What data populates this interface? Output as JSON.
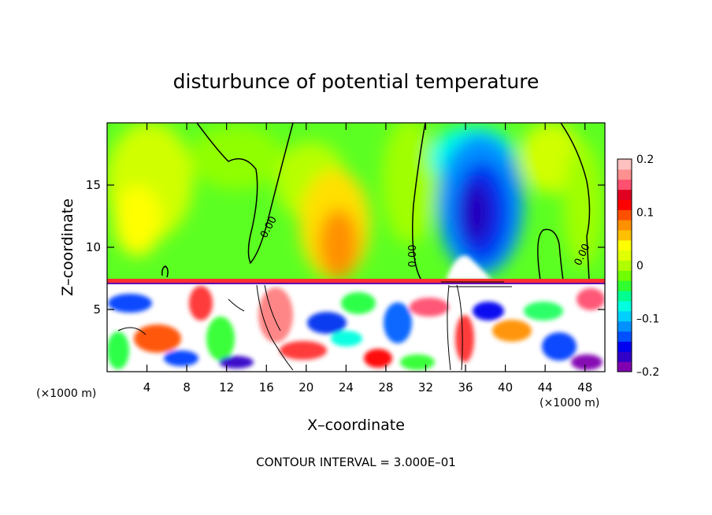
{
  "chart_data": {
    "type": "heatmap",
    "title": "disturbunce of potential temperature",
    "xlabel": "X–coordinate",
    "ylabel": "Z–coordinate",
    "x_unit": "(×1000 m)",
    "x_ticks": [
      4,
      8,
      12,
      16,
      20,
      24,
      28,
      32,
      36,
      40,
      44,
      48
    ],
    "y_ticks": [
      5,
      10,
      15
    ],
    "xlim": [
      0,
      50
    ],
    "ylim": [
      0,
      20
    ],
    "colorbar": {
      "ticks": [
        {
          "value": 0.2,
          "label": "0.2"
        },
        {
          "value": 0.1,
          "label": "0.1"
        },
        {
          "value": 0.0,
          "label": "0"
        },
        {
          "value": -0.1,
          "label": "–0.1"
        },
        {
          "value": -0.2,
          "label": "–0.2"
        }
      ],
      "range": [
        -0.2,
        0.2
      ]
    },
    "contour_labels": [
      {
        "text": "0.00",
        "x": 16.5,
        "z": 11.5,
        "angle": -62
      },
      {
        "text": "0.00",
        "x": 31.0,
        "z": 9.3,
        "angle": -90
      },
      {
        "text": "0.00",
        "x": 48.0,
        "z": 9.3,
        "angle": -65
      }
    ],
    "footer": "CONTOUR INTERVAL = 3.000E–01",
    "regions": [
      {
        "x": 6,
        "z": 16,
        "value": 0.07
      },
      {
        "x": 24,
        "z": 10.5,
        "value": 0.12
      },
      {
        "x": 38,
        "z": 13,
        "value": -0.17
      },
      {
        "x": 36,
        "z": 17,
        "value": -0.08
      },
      {
        "x": 44,
        "z": 15,
        "value": 0.04
      },
      {
        "x": 15,
        "z": 17,
        "value": 0.02
      }
    ]
  },
  "colors": {
    "palette": [
      "#8000b0",
      "#3000c8",
      "#0000f0",
      "#0050ff",
      "#0090ff",
      "#00d0ff",
      "#00ffe0",
      "#00ff90",
      "#30ff30",
      "#70ff00",
      "#b0ff00",
      "#e0ff00",
      "#ffff00",
      "#ffc000",
      "#ff9000",
      "#ff5000",
      "#ff0000",
      "#e00020",
      "#ff5070",
      "#ff9090",
      "#ffc0c0"
    ]
  }
}
